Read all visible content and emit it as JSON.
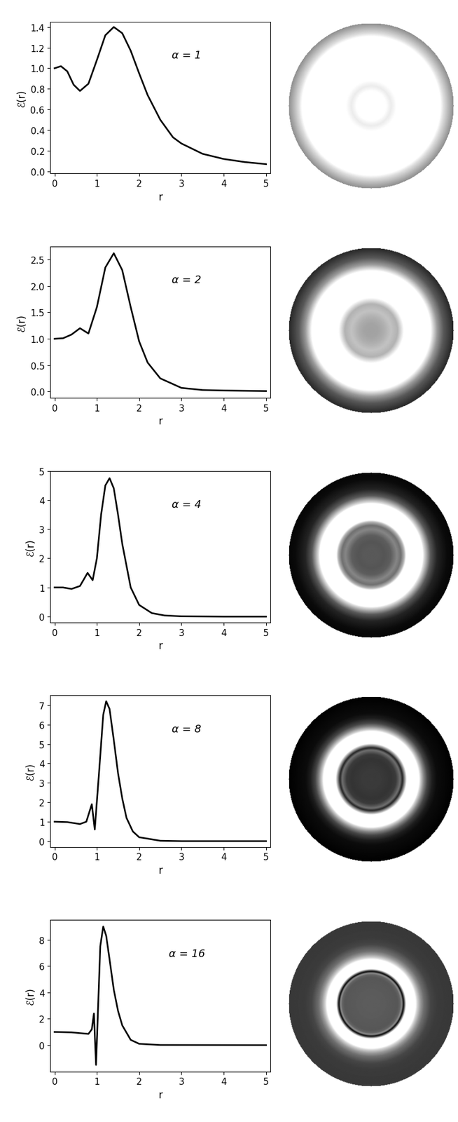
{
  "chart_data": [
    {
      "type": "line",
      "annotation": "α = 1",
      "x_label": "r",
      "y_label": "ℰ(r)",
      "color": "#000000",
      "x": [
        0,
        0.15,
        0.3,
        0.45,
        0.6,
        0.8,
        1.0,
        1.2,
        1.4,
        1.6,
        1.8,
        2.0,
        2.2,
        2.5,
        2.8,
        3.0,
        3.5,
        4.0,
        4.5,
        5.0
      ],
      "values": [
        1.0,
        1.02,
        0.97,
        0.84,
        0.78,
        0.85,
        1.08,
        1.32,
        1.4,
        1.34,
        1.17,
        0.95,
        0.74,
        0.5,
        0.33,
        0.27,
        0.17,
        0.12,
        0.09,
        0.07
      ],
      "xlim": [
        -0.1,
        5.1
      ],
      "xticks": [
        0,
        1,
        2,
        3,
        4,
        5
      ],
      "ylim": [
        -0.02,
        1.45
      ],
      "yticks": [
        0.0,
        0.2,
        0.4,
        0.6,
        0.8,
        1.0,
        1.2,
        1.4
      ]
    },
    {
      "type": "line",
      "annotation": "α = 2",
      "x_label": "r",
      "y_label": "ℰ(r)",
      "color": "#000000",
      "x": [
        0,
        0.2,
        0.4,
        0.6,
        0.8,
        1.0,
        1.2,
        1.4,
        1.6,
        1.8,
        2.0,
        2.2,
        2.5,
        3.0,
        3.5,
        4.0,
        5.0
      ],
      "values": [
        1.0,
        1.01,
        1.08,
        1.2,
        1.1,
        1.6,
        2.35,
        2.62,
        2.3,
        1.6,
        0.95,
        0.55,
        0.25,
        0.07,
        0.03,
        0.02,
        0.01
      ],
      "xlim": [
        -0.1,
        5.1
      ],
      "xticks": [
        0,
        1,
        2,
        3,
        4,
        5
      ],
      "ylim": [
        -0.12,
        2.75
      ],
      "yticks": [
        0.0,
        0.5,
        1.0,
        1.5,
        2.0,
        2.5
      ]
    },
    {
      "type": "line",
      "annotation": "α = 4",
      "x_label": "r",
      "y_label": "ℰ(r)",
      "color": "#000000",
      "x": [
        0,
        0.2,
        0.4,
        0.6,
        0.78,
        0.9,
        1.0,
        1.1,
        1.2,
        1.3,
        1.4,
        1.5,
        1.6,
        1.8,
        2.0,
        2.3,
        2.6,
        3.0,
        4.0,
        5.0
      ],
      "values": [
        1.0,
        1.0,
        0.95,
        1.05,
        1.5,
        1.25,
        2.0,
        3.5,
        4.5,
        4.75,
        4.4,
        3.5,
        2.5,
        1.0,
        0.4,
        0.12,
        0.04,
        0.01,
        0,
        0
      ],
      "xlim": [
        -0.1,
        5.1
      ],
      "xticks": [
        0,
        1,
        2,
        3,
        4,
        5
      ],
      "ylim": [
        -0.2,
        5.0
      ],
      "yticks": [
        0,
        1,
        2,
        3,
        4,
        5
      ]
    },
    {
      "type": "line",
      "annotation": "α = 8",
      "x_label": "r",
      "y_label": "ℰ(r)",
      "color": "#000000",
      "x": [
        0,
        0.3,
        0.6,
        0.75,
        0.88,
        0.95,
        1.05,
        1.15,
        1.22,
        1.3,
        1.4,
        1.5,
        1.6,
        1.7,
        1.85,
        2.0,
        2.5,
        3.0,
        5.0
      ],
      "values": [
        1.0,
        0.98,
        0.88,
        1.0,
        1.9,
        0.6,
        3.5,
        6.5,
        7.2,
        6.8,
        5.2,
        3.5,
        2.2,
        1.2,
        0.5,
        0.2,
        0.02,
        0,
        0
      ],
      "xlim": [
        -0.1,
        5.1
      ],
      "xticks": [
        0,
        1,
        2,
        3,
        4,
        5
      ],
      "ylim": [
        -0.3,
        7.5
      ],
      "yticks": [
        0,
        1,
        2,
        3,
        4,
        5,
        6,
        7
      ]
    },
    {
      "type": "line",
      "annotation": "α = 16",
      "x_label": "r",
      "y_label": "ℰ(r)",
      "color": "#000000",
      "x": [
        0,
        0.4,
        0.8,
        0.88,
        0.93,
        0.98,
        1.03,
        1.08,
        1.15,
        1.22,
        1.3,
        1.4,
        1.5,
        1.6,
        1.8,
        2.0,
        2.5,
        5.0
      ],
      "values": [
        1.0,
        0.97,
        0.85,
        1.2,
        2.4,
        -1.5,
        3.0,
        7.5,
        9.0,
        8.3,
        6.5,
        4.2,
        2.6,
        1.5,
        0.4,
        0.1,
        0.01,
        0
      ],
      "xlim": [
        -0.1,
        5.1
      ],
      "xticks": [
        0,
        1,
        2,
        3,
        4,
        5
      ],
      "ylim": [
        -2.0,
        9.5
      ],
      "yticks": [
        0,
        2,
        4,
        6,
        8
      ]
    }
  ]
}
